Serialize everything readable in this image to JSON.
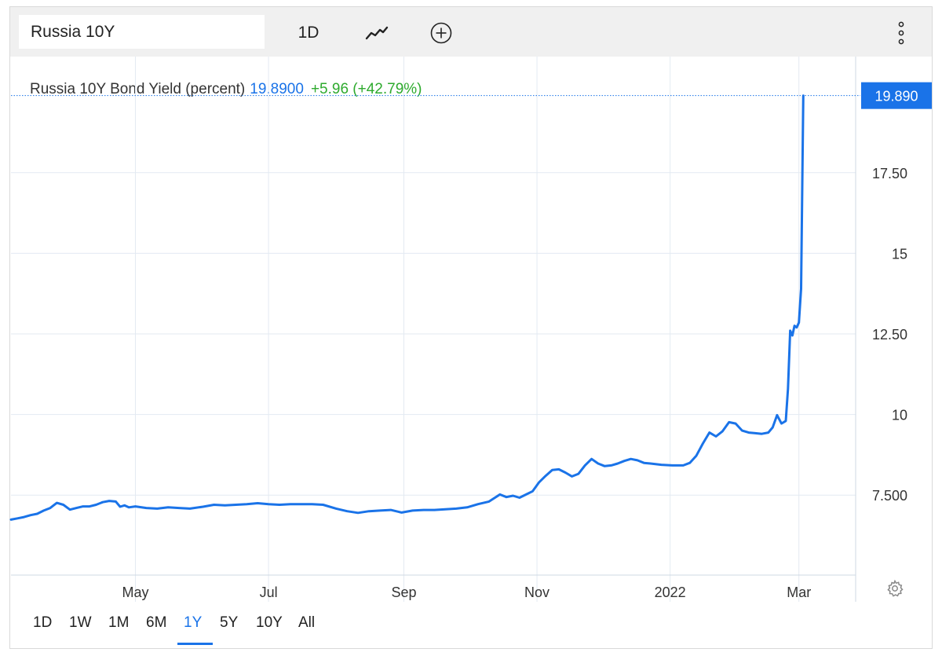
{
  "toolbar": {
    "symbol": "Russia 10Y",
    "interval": "1D",
    "icons": [
      "line-chart-icon",
      "add-compare-icon",
      "more-vertical-icon"
    ]
  },
  "legend": {
    "name": "Russia 10Y Bond Yield (percent)",
    "price": "19.8900",
    "change": "+5.96 (+42.79%)"
  },
  "price_tag": "19.890",
  "ranges": [
    "1D",
    "1W",
    "1M",
    "6M",
    "1Y",
    "5Y",
    "10Y",
    "All"
  ],
  "active_range": "1Y",
  "colors": {
    "line": "#1a73e8",
    "change": "#2eaa2e",
    "grid": "#e3eaf2"
  },
  "chart_data": {
    "type": "line",
    "title": "Russia 10Y Bond Yield (percent)",
    "x_ticks": [
      {
        "date": "2021-05-01",
        "label": "May"
      },
      {
        "date": "2021-07-01",
        "label": "Jul"
      },
      {
        "date": "2021-09-01",
        "label": "Sep"
      },
      {
        "date": "2021-11-01",
        "label": "Nov"
      },
      {
        "date": "2022-01-01",
        "label": "2022"
      },
      {
        "date": "2022-03-01",
        "label": "Mar"
      }
    ],
    "y_ticks": [
      {
        "value": 7.5,
        "label": "7.500"
      },
      {
        "value": 10,
        "label": "10"
      },
      {
        "value": 12.5,
        "label": "12.50"
      },
      {
        "value": 15,
        "label": "15"
      },
      {
        "value": 17.5,
        "label": "17.50"
      }
    ],
    "xlim": [
      "2021-03-05",
      "2022-03-27"
    ],
    "ylim": [
      5.02,
      21.1
    ],
    "grid": true,
    "last_value": 19.89,
    "series": [
      {
        "points": [
          [
            "2021-03-05",
            6.74
          ],
          [
            "2021-03-08",
            6.78
          ],
          [
            "2021-03-11",
            6.82
          ],
          [
            "2021-03-14",
            6.88
          ],
          [
            "2021-03-17",
            6.92
          ],
          [
            "2021-03-20",
            7.02
          ],
          [
            "2021-03-23",
            7.1
          ],
          [
            "2021-03-26",
            7.26
          ],
          [
            "2021-03-29",
            7.2
          ],
          [
            "2021-04-01",
            7.05
          ],
          [
            "2021-04-04",
            7.1
          ],
          [
            "2021-04-07",
            7.15
          ],
          [
            "2021-04-10",
            7.15
          ],
          [
            "2021-04-13",
            7.2
          ],
          [
            "2021-04-16",
            7.28
          ],
          [
            "2021-04-19",
            7.32
          ],
          [
            "2021-04-22",
            7.3
          ],
          [
            "2021-04-24",
            7.14
          ],
          [
            "2021-04-26",
            7.18
          ],
          [
            "2021-04-28",
            7.12
          ],
          [
            "2021-05-01",
            7.15
          ],
          [
            "2021-05-06",
            7.1
          ],
          [
            "2021-05-11",
            7.08
          ],
          [
            "2021-05-16",
            7.12
          ],
          [
            "2021-05-21",
            7.1
          ],
          [
            "2021-05-26",
            7.08
          ],
          [
            "2021-06-01",
            7.14
          ],
          [
            "2021-06-06",
            7.2
          ],
          [
            "2021-06-11",
            7.18
          ],
          [
            "2021-06-16",
            7.2
          ],
          [
            "2021-06-21",
            7.22
          ],
          [
            "2021-06-26",
            7.25
          ],
          [
            "2021-07-01",
            7.22
          ],
          [
            "2021-07-06",
            7.2
          ],
          [
            "2021-07-11",
            7.22
          ],
          [
            "2021-07-16",
            7.22
          ],
          [
            "2021-07-21",
            7.22
          ],
          [
            "2021-07-26",
            7.2
          ],
          [
            "2021-08-01",
            7.08
          ],
          [
            "2021-08-06",
            7.0
          ],
          [
            "2021-08-11",
            6.95
          ],
          [
            "2021-08-16",
            7.0
          ],
          [
            "2021-08-21",
            7.02
          ],
          [
            "2021-08-26",
            7.04
          ],
          [
            "2021-08-31",
            6.96
          ],
          [
            "2021-09-05",
            7.02
          ],
          [
            "2021-09-10",
            7.04
          ],
          [
            "2021-09-15",
            7.04
          ],
          [
            "2021-09-20",
            7.06
          ],
          [
            "2021-09-25",
            7.08
          ],
          [
            "2021-09-30",
            7.12
          ],
          [
            "2021-10-05",
            7.22
          ],
          [
            "2021-10-10",
            7.3
          ],
          [
            "2021-10-15",
            7.52
          ],
          [
            "2021-10-18",
            7.44
          ],
          [
            "2021-10-21",
            7.48
          ],
          [
            "2021-10-24",
            7.42
          ],
          [
            "2021-10-27",
            7.52
          ],
          [
            "2021-10-30",
            7.62
          ],
          [
            "2021-11-02",
            7.9
          ],
          [
            "2021-11-05",
            8.1
          ],
          [
            "2021-11-08",
            8.28
          ],
          [
            "2021-11-11",
            8.3
          ],
          [
            "2021-11-14",
            8.2
          ],
          [
            "2021-11-17",
            8.08
          ],
          [
            "2021-11-20",
            8.16
          ],
          [
            "2021-11-23",
            8.42
          ],
          [
            "2021-11-26",
            8.62
          ],
          [
            "2021-11-29",
            8.48
          ],
          [
            "2021-12-02",
            8.4
          ],
          [
            "2021-12-05",
            8.42
          ],
          [
            "2021-12-08",
            8.48
          ],
          [
            "2021-12-11",
            8.56
          ],
          [
            "2021-12-14",
            8.62
          ],
          [
            "2021-12-17",
            8.58
          ],
          [
            "2021-12-20",
            8.5
          ],
          [
            "2021-12-23",
            8.48
          ],
          [
            "2021-12-28",
            8.44
          ],
          [
            "2022-01-02",
            8.42
          ],
          [
            "2022-01-07",
            8.42
          ],
          [
            "2022-01-10",
            8.5
          ],
          [
            "2022-01-13",
            8.72
          ],
          [
            "2022-01-16",
            9.1
          ],
          [
            "2022-01-19",
            9.44
          ],
          [
            "2022-01-22",
            9.32
          ],
          [
            "2022-01-25",
            9.48
          ],
          [
            "2022-01-28",
            9.76
          ],
          [
            "2022-01-31",
            9.72
          ],
          [
            "2022-02-03",
            9.5
          ],
          [
            "2022-02-06",
            9.44
          ],
          [
            "2022-02-09",
            9.42
          ],
          [
            "2022-02-12",
            9.4
          ],
          [
            "2022-02-15",
            9.44
          ],
          [
            "2022-02-17",
            9.6
          ],
          [
            "2022-02-19",
            9.98
          ],
          [
            "2022-02-21",
            9.72
          ],
          [
            "2022-02-23",
            9.8
          ],
          [
            "2022-02-24",
            10.8
          ],
          [
            "2022-02-25",
            12.6
          ],
          [
            "2022-02-26",
            12.45
          ],
          [
            "2022-02-27",
            12.75
          ],
          [
            "2022-02-28",
            12.7
          ],
          [
            "2022-03-01",
            12.85
          ],
          [
            "2022-03-02",
            13.9
          ],
          [
            "2022-03-03",
            19.89
          ]
        ]
      }
    ]
  }
}
